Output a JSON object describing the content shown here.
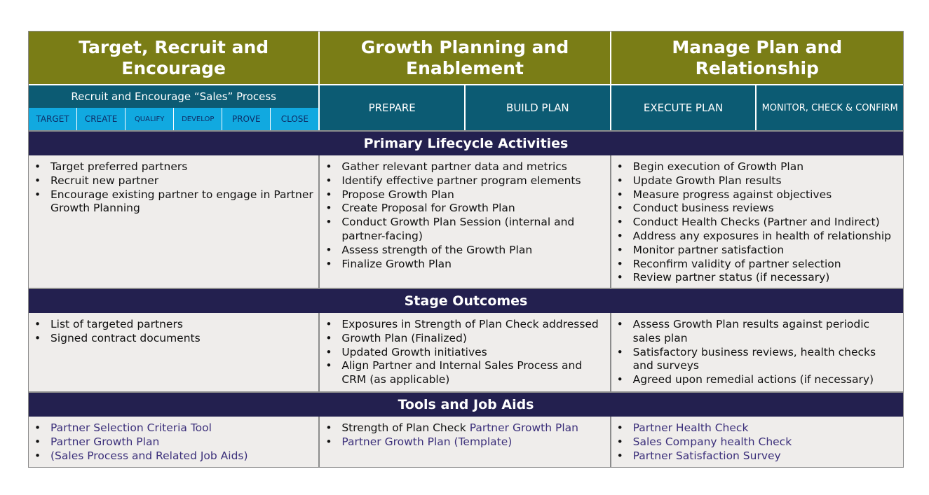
{
  "headers": [
    "Target, Recruit and Encourage",
    "Growth Planning and Enablement",
    "Manage Plan and Relationship"
  ],
  "phases": {
    "left_title": "Recruit and Encourage “Sales” Process",
    "steps": [
      "TARGET",
      "CREATE",
      "QUALIFY",
      "DEVELOP",
      "PROVE",
      "CLOSE"
    ],
    "prepare": "PREPARE",
    "build_plan": "BUILD PLAN",
    "execute_plan": "EXECUTE PLAN",
    "monitor": "MONITOR, CHECK & CONFIRM"
  },
  "sections": {
    "primary": "Primary Lifecycle Activities",
    "outcomes": "Stage Outcomes",
    "tools": "Tools and Job Aids"
  },
  "primary": {
    "col1": [
      "Target preferred partners",
      "Recruit new partner",
      "Encourage existing partner to engage in Partner Growth Planning"
    ],
    "col2": [
      "Gather relevant partner data and metrics",
      "Identify effective partner program elements",
      "Propose Growth Plan",
      "Create Proposal for Growth Plan",
      "Conduct Growth Plan Session (internal and partner-facing)",
      "Assess strength of the Growth Plan",
      "Finalize Growth Plan"
    ],
    "col3": [
      "Begin execution of Growth Plan",
      "Update Growth Plan results",
      "Measure progress against objectives",
      "Conduct business reviews",
      "Conduct Health Checks (Partner and Indirect)",
      "Address any exposures in health of relationship",
      "Monitor partner satisfaction",
      "Reconfirm validity of partner selection",
      "Review partner status (if necessary)"
    ]
  },
  "outcomes": {
    "col1": [
      "List of targeted partners",
      "Signed contract documents"
    ],
    "col2": [
      "Exposures in Strength of Plan Check addressed",
      "Growth Plan (Finalized)",
      "Updated Growth initiatives",
      "Align Partner and Internal Sales Process and CRM (as applicable)"
    ],
    "col3": [
      "Assess Growth Plan results against periodic sales plan",
      "Satisfactory business reviews, health checks and surveys",
      "Agreed upon remedial actions (if necessary)"
    ]
  },
  "tools": {
    "col1": [
      "Partner Selection Criteria Tool",
      "Partner Growth Plan",
      "(Sales Process and Related Job Aids)"
    ],
    "col2_item1_plain": "Strength of Plan Check ",
    "col2_item1_link": "Partner Growth Plan",
    "col2_item2": "Partner Growth Plan (Template)",
    "col3": [
      "Partner Health Check",
      "Sales Company health Check",
      "Partner Satisfaction Survey"
    ]
  },
  "bullet": "•",
  "colors": {
    "header_olive": "#7a7d16",
    "phase_teal": "#0c5b73",
    "step_blue": "#11a9e0",
    "section_navy": "#23204f",
    "cell_bg": "#efedeb",
    "link_purple": "#3b2f7a"
  }
}
